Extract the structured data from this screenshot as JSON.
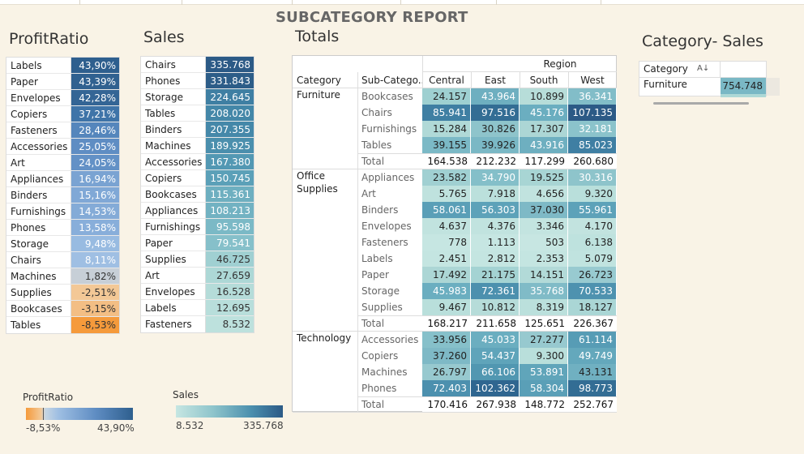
{
  "report_title": "SUBCATEGORY REPORT",
  "profit": {
    "title": "ProfitRatio",
    "rows": [
      {
        "label": "Labels",
        "value": "43,90%",
        "color": "#2e5f8e",
        "light": false
      },
      {
        "label": "Paper",
        "value": "43,39%",
        "color": "#306190",
        "light": false
      },
      {
        "label": "Envelopes",
        "value": "42,28%",
        "color": "#346595",
        "light": false
      },
      {
        "label": "Copiers",
        "value": "37,21%",
        "color": "#3f74a8",
        "light": false
      },
      {
        "label": "Fasteners",
        "value": "28,46%",
        "color": "#5586bc",
        "light": false
      },
      {
        "label": "Accessories",
        "value": "25,05%",
        "color": "#5f8dc3",
        "light": false
      },
      {
        "label": "Art",
        "value": "24,05%",
        "color": "#6391c6",
        "light": false
      },
      {
        "label": "Appliances",
        "value": "16,94%",
        "color": "#7aa3d2",
        "light": false
      },
      {
        "label": "Binders",
        "value": "15,16%",
        "color": "#80a8d6",
        "light": false
      },
      {
        "label": "Furnishings",
        "value": "14,53%",
        "color": "#84abd7",
        "light": false
      },
      {
        "label": "Phones",
        "value": "13,58%",
        "color": "#88aeda",
        "light": false
      },
      {
        "label": "Storage",
        "value": "9,48%",
        "color": "#98bbe1",
        "light": false
      },
      {
        "label": "Chairs",
        "value": "8,11%",
        "color": "#9fbfe3",
        "light": false
      },
      {
        "label": "Machines",
        "value": "1,82%",
        "color": "#c7cfd7",
        "light": true
      },
      {
        "label": "Supplies",
        "value": "-2,51%",
        "color": "#f3c896",
        "light": true
      },
      {
        "label": "Bookcases",
        "value": "-3,15%",
        "color": "#f3be84",
        "light": true
      },
      {
        "label": "Tables",
        "value": "-8,53%",
        "color": "#f59a3b",
        "light": true
      }
    ]
  },
  "sales": {
    "title": "Sales",
    "rows": [
      {
        "label": "Chairs",
        "value": "335.768",
        "color": "#2c5a86",
        "light": false
      },
      {
        "label": "Phones",
        "value": "331.843",
        "color": "#2d5d88",
        "light": false
      },
      {
        "label": "Storage",
        "value": "224.645",
        "color": "#3f7fa3",
        "light": false
      },
      {
        "label": "Tables",
        "value": "208.020",
        "color": "#4487a8",
        "light": false
      },
      {
        "label": "Binders",
        "value": "207.355",
        "color": "#4588a9",
        "light": false
      },
      {
        "label": "Machines",
        "value": "189.925",
        "color": "#4b8fad",
        "light": false
      },
      {
        "label": "Accessories",
        "value": "167.380",
        "color": "#5398b3",
        "light": false
      },
      {
        "label": "Copiers",
        "value": "150.745",
        "color": "#5ba0b8",
        "light": false
      },
      {
        "label": "Bookcases",
        "value": "115.361",
        "color": "#6eafc0",
        "light": false
      },
      {
        "label": "Appliances",
        "value": "108.213",
        "color": "#72b2c2",
        "light": false
      },
      {
        "label": "Furnishings",
        "value": "95.598",
        "color": "#7bb9c6",
        "light": false
      },
      {
        "label": "Paper",
        "value": "79.541",
        "color": "#86c0ca",
        "light": false
      },
      {
        "label": "Supplies",
        "value": "46.725",
        "color": "#a0d0d2",
        "light": true
      },
      {
        "label": "Art",
        "value": "27.659",
        "color": "#add8d6",
        "light": true
      },
      {
        "label": "Envelopes",
        "value": "16.528",
        "color": "#b5dcd9",
        "light": true
      },
      {
        "label": "Labels",
        "value": "12.695",
        "color": "#b8dedb",
        "light": true
      },
      {
        "label": "Fasteners",
        "value": "8.532",
        "color": "#bde1dd",
        "light": true
      }
    ]
  },
  "totals": {
    "title": "Totals",
    "header_region": "Region",
    "header_category": "Category",
    "header_subcategory": "Sub-Catego..",
    "regions": [
      "Central",
      "East",
      "South",
      "West"
    ],
    "groups": [
      {
        "category": [
          "Furniture"
        ],
        "rows": [
          {
            "sub": "Bookcases",
            "vals": [
              "24.157",
              "43.964",
              "10.899",
              "36.341"
            ],
            "colors": [
              "#9ed0d1",
              "#6eafc0",
              "#b7ddd9",
              "#82bdc8"
            ],
            "light": [
              true,
              false,
              true,
              false
            ]
          },
          {
            "sub": "Chairs",
            "vals": [
              "85.941",
              "97.516",
              "45.176",
              "107.135"
            ],
            "colors": [
              "#3f7fa3",
              "#336d94",
              "#6baec0",
              "#2c5a86"
            ],
            "light": [
              false,
              false,
              false,
              false
            ]
          },
          {
            "sub": "Furnishings",
            "vals": [
              "15.284",
              "30.826",
              "17.307",
              "32.181"
            ],
            "colors": [
              "#b0d9d7",
              "#8ec4cb",
              "#acd6d5",
              "#8bc3cb"
            ],
            "light": [
              true,
              true,
              true,
              false
            ]
          },
          {
            "sub": "Tables",
            "vals": [
              "39.155",
              "39.926",
              "43.916",
              "85.023"
            ],
            "colors": [
              "#7bb9c6",
              "#7ab8c5",
              "#6eafc0",
              "#3f7fa3"
            ],
            "light": [
              true,
              true,
              false,
              false
            ]
          },
          {
            "sub": "Total",
            "vals": [
              "164.538",
              "212.232",
              "117.299",
              "260.680"
            ],
            "total": true
          }
        ]
      },
      {
        "category": [
          "Office",
          "Supplies"
        ],
        "rows": [
          {
            "sub": "Appliances",
            "vals": [
              "23.582",
              "34.790",
              "19.525",
              "30.316"
            ],
            "colors": [
              "#a0d0d2",
              "#84bfc9",
              "#a8d5d4",
              "#8ec4cb"
            ],
            "light": [
              true,
              false,
              true,
              false
            ]
          },
          {
            "sub": "Art",
            "vals": [
              "5.765",
              "7.918",
              "4.656",
              "9.320"
            ],
            "colors": [
              "#bfe2de",
              "#bbe0dc",
              "#c1e3df",
              "#b9dfdb"
            ],
            "light": [
              true,
              true,
              true,
              true
            ]
          },
          {
            "sub": "Binders",
            "vals": [
              "58.061",
              "56.303",
              "37.030",
              "55.961"
            ],
            "colors": [
              "#5a9fb7",
              "#5da2b9",
              "#7eb9c6",
              "#5da2b9"
            ],
            "light": [
              false,
              false,
              true,
              false
            ]
          },
          {
            "sub": "Envelopes",
            "vals": [
              "4.637",
              "4.376",
              "3.346",
              "4.170"
            ],
            "colors": [
              "#c1e3df",
              "#c1e3df",
              "#c3e4e0",
              "#c2e3df"
            ],
            "light": [
              true,
              true,
              true,
              true
            ]
          },
          {
            "sub": "Fasteners",
            "vals": [
              "778",
              "1.113",
              "503",
              "6.138"
            ],
            "colors": [
              "#c6e6e2",
              "#c6e6e2",
              "#c7e6e2",
              "#bee2de"
            ],
            "light": [
              true,
              true,
              true,
              true
            ]
          },
          {
            "sub": "Labels",
            "vals": [
              "2.451",
              "2.812",
              "2.353",
              "5.079"
            ],
            "colors": [
              "#c4e5e1",
              "#c4e5e1",
              "#c4e5e1",
              "#c0e3df"
            ],
            "light": [
              true,
              true,
              true,
              true
            ]
          },
          {
            "sub": "Paper",
            "vals": [
              "17.492",
              "21.175",
              "14.151",
              "26.723"
            ],
            "colors": [
              "#acd6d5",
              "#a4d3d3",
              "#b2dad8",
              "#98cad0"
            ],
            "light": [
              true,
              true,
              true,
              true
            ]
          },
          {
            "sub": "Storage",
            "vals": [
              "45.983",
              "72.361",
              "35.768",
              "70.533"
            ],
            "colors": [
              "#6baec0",
              "#4c90ae",
              "#80bbc7",
              "#4e92af"
            ],
            "light": [
              false,
              false,
              false,
              false
            ]
          },
          {
            "sub": "Supplies",
            "vals": [
              "9.467",
              "10.812",
              "8.319",
              "18.127"
            ],
            "colors": [
              "#b9dfdb",
              "#b6dcd9",
              "#bbe0dc",
              "#aad6d5"
            ],
            "light": [
              true,
              true,
              true,
              true
            ]
          },
          {
            "sub": "Total",
            "vals": [
              "168.217",
              "211.658",
              "125.651",
              "226.367"
            ],
            "total": true
          }
        ]
      },
      {
        "category": [
          "Technology"
        ],
        "rows": [
          {
            "sub": "Accessories",
            "vals": [
              "33.956",
              "45.033",
              "27.277",
              "61.114"
            ],
            "colors": [
              "#86c0ca",
              "#6baec0",
              "#97c9cf",
              "#579cb5"
            ],
            "light": [
              true,
              false,
              true,
              false
            ]
          },
          {
            "sub": "Copiers",
            "vals": [
              "37.260",
              "54.437",
              "9.300",
              "49.749"
            ],
            "colors": [
              "#7eb9c6",
              "#5fa4ba",
              "#b9dfdb",
              "#64a8bc"
            ],
            "light": [
              true,
              false,
              true,
              false
            ]
          },
          {
            "sub": "Machines",
            "vals": [
              "26.797",
              "66.106",
              "53.891",
              "43.131"
            ],
            "colors": [
              "#97c9cf",
              "#5197b1",
              "#60a5ba",
              "#70b0c1"
            ],
            "light": [
              true,
              false,
              false,
              true
            ]
          },
          {
            "sub": "Phones",
            "vals": [
              "72.403",
              "102.362",
              "58.304",
              "98.773"
            ],
            "colors": [
              "#4c90ae",
              "#2f6690",
              "#5a9fb7",
              "#336d94"
            ],
            "light": [
              false,
              false,
              false,
              false
            ]
          },
          {
            "sub": "Total",
            "vals": [
              "170.416",
              "267.938",
              "148.772",
              "252.767"
            ],
            "total": true
          }
        ]
      }
    ]
  },
  "category_sales": {
    "title": "Category- Sales",
    "header": "Category",
    "sort_icon": "sort-icon",
    "row_label": "Furniture",
    "row_value": "754.748",
    "row_color": "#7ab8c5",
    "next_value_color": "#add8d6"
  },
  "legend_profit": {
    "title": "ProfitRatio",
    "min": "-8,53%",
    "max": "43,90%"
  },
  "legend_sales": {
    "title": "Sales",
    "min": "8.532",
    "max": "335.768"
  }
}
